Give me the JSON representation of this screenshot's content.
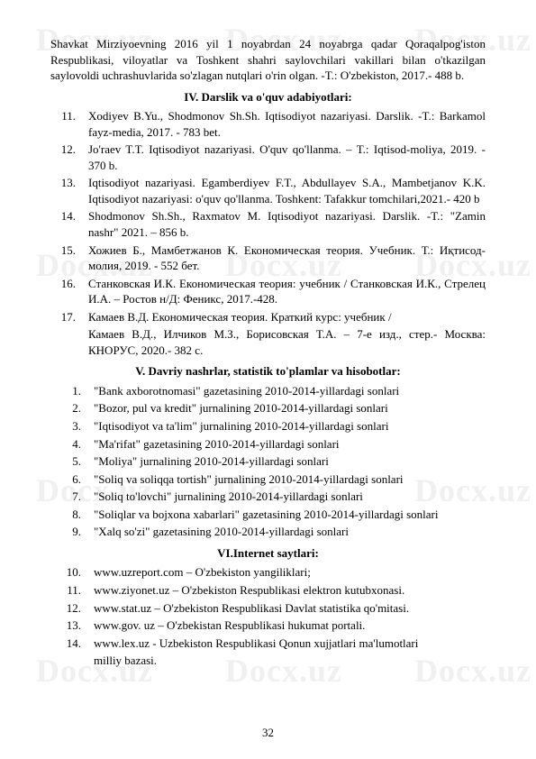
{
  "watermark": "Docx.uz",
  "intro_para": "Shavkat Mirziyoevning 2016 yil 1 noyabrdan 24 noyabrga qadar Qoraqalpog'iston Respublikasi, viloyatlar va Toshkent shahri saylovchilari vakillari bilan o'tkazilgan saylovoldi uchrashuvlarida so'zlagan nutqlari o'rin olgan. -T.: O'zbekiston, 2017.- 488 b.",
  "heading4": "IV. Darslik va o'quv adabiyotlari:",
  "refs": [
    {
      "n": "11.",
      "t": "Xodiyev B.Yu., Shodmonov Sh.Sh. Iqtisodiyot nazariyasi. Darslik. -T.: Barkamol fayz-media, 2017. - 783 bet."
    },
    {
      "n": "12.",
      "t": "Jo'raev T.T. Iqtisodiyot nazariyasi. O'quv qo'llanma. – T.: Iqtisod-moliya, 2019. - 370 b."
    },
    {
      "n": "13.",
      "t": "Iqtisodiyot nazariyasi. Egamberdiyev F.T., Abdullayev S.A., Mambetjanov K.K. Iqtisodiyot nazariyasi: o'quv qo'llanma. Toshkent: Tafakkur tomchilari,2021.- 420 b"
    },
    {
      "n": "14.",
      "t": "Shodmonov Sh.Sh., Raxmatov M. Iqtisodiyot nazariyasi. Darslik. -T.: \"Zamin nashr\" 2021. – 856 b."
    },
    {
      "n": "15.",
      "t": "Хожиев Б., Мамбетжанов К. Економическая теория. Учебник. Т.: Иқтисод- молия, 2019. - 552 бет."
    },
    {
      "n": "16.",
      "t": "Станковская И.К. Економическая теория: учебник / Станковская И.К., Стрелец И.А. – Ростов н/Д: Феникс, 2017.-428."
    },
    {
      "n": "17.",
      "t": "Камаев В.Д. Економическая теория. Краткий курс: учебник /"
    }
  ],
  "ref17_cont": "Камаев В.Д., Илчиков М.З., Борисовская Т.А. – 7-е изд., стер.- Москва: КНОРУС, 2020.- 382 с.",
  "heading5": "V. Davriy nashrlar, statistik to'plamlar va hisobotlar:",
  "list5": [
    {
      "n": "1.",
      "t": "\"Bank axborotnomasi\" gazetasining 2010-2014-yillardagi sonlari"
    },
    {
      "n": "2.",
      "t": "\"Bozor, pul va kredit\" jurnalining 2010-2014-yillardagi sonlari"
    },
    {
      "n": "3.",
      "t": "\"Iqtisodiyot va ta'lim\" jurnalining 2010-2014-yillardagi sonlari"
    },
    {
      "n": "4.",
      "t": "\"Ma'rifat\" gazetasining 2010-2014-yillardagi sonlari"
    },
    {
      "n": "5.",
      "t": "\"Moliya\" jurnalining 2010-2014-yillardagi sonlari"
    },
    {
      "n": "6.",
      "t": "\"Soliq va soliqqa tortish\" jurnalining 2010-2014-yillardagi sonlari"
    },
    {
      "n": "7.",
      "t": "\"Soliq to'lovchi\" jurnalining 2010-2014-yillardagi sonlari"
    },
    {
      "n": "8.",
      "t": "\"Soliqlar va bojxona xabarlari\" gazetasining 2010-2014-yillardagi sonlari"
    },
    {
      "n": "9.",
      "t": "\"Xalq so'zi\" gazetasining 2010-2014-yillardagi sonlari"
    }
  ],
  "heading6": "VI.Internet saytlari:",
  "list6": [
    {
      "n": "10.",
      "t": "www.uzreport.com – O'zbekiston yangiliklari;"
    },
    {
      "n": "11.",
      "t": "www.ziyonet.uz – O'zbekiston Respublikasi elektron kutubxonasi."
    },
    {
      "n": "12.",
      "t": "www.stat.uz – O'zbekiston Respublikasi Davlat statistika qo'mitasi."
    },
    {
      "n": "13.",
      "t": "www.gov. uz – O'zbekistan Respublikasi hukumat portali."
    },
    {
      "n": "14.",
      "t": "www.lex.uz - Uzbekiston Respublikasi Qonun xujjatlari ma'lumotlari"
    }
  ],
  "list6_cont": "milliy bazasi.",
  "page_number": "32"
}
